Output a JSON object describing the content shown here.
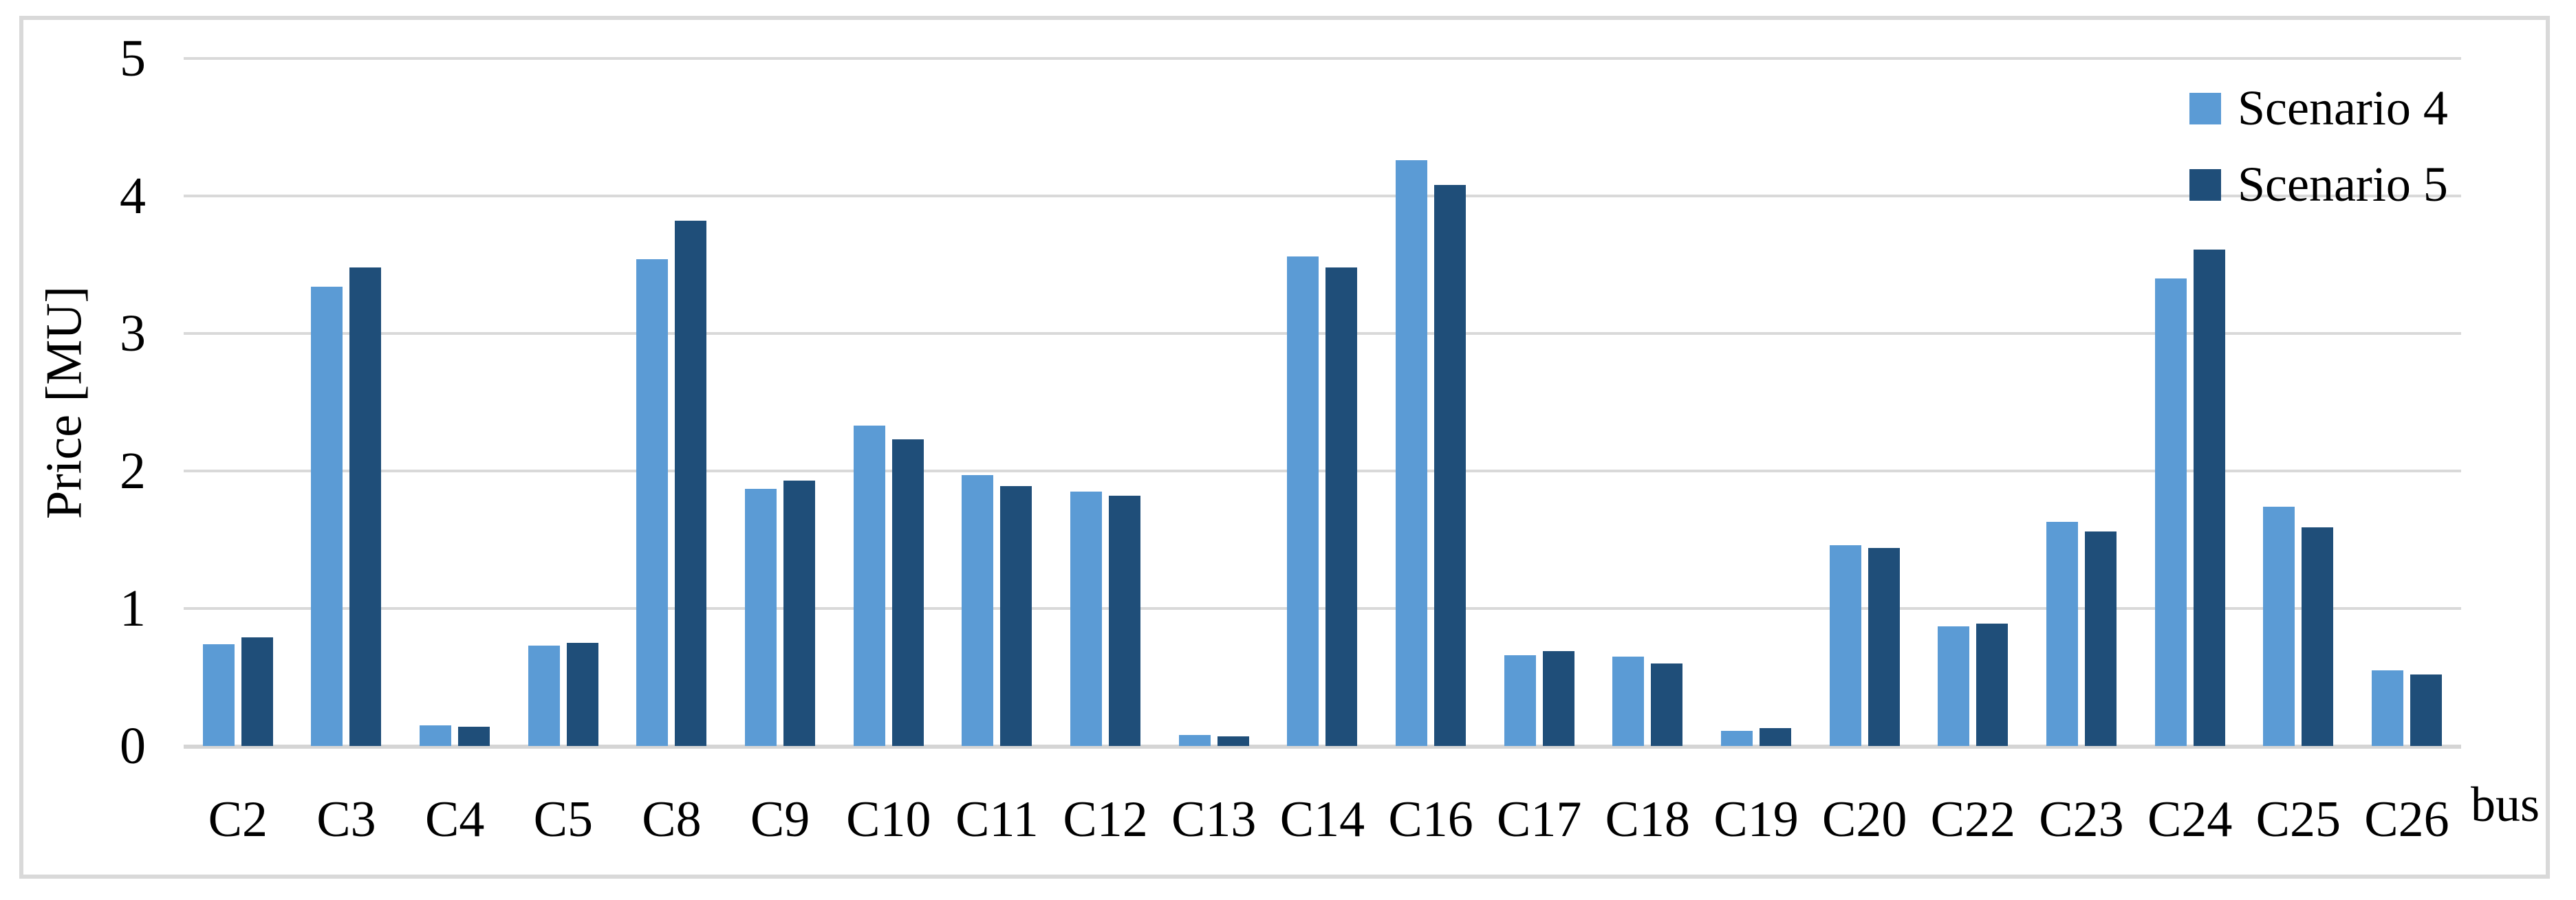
{
  "figure": {
    "background": "#ffffff",
    "border_color": "#d9d9d9",
    "gridline_color": "#d9d9d9"
  },
  "legend": {
    "items": [
      {
        "label": "Scenario 4",
        "color": "#5b9bd5"
      },
      {
        "label": "Scenario 5",
        "color": "#1f4e79"
      }
    ]
  },
  "chart_data": {
    "type": "bar",
    "title": "",
    "xlabel": "bus",
    "ylabel": "Price [MU]",
    "ylim": [
      0,
      5
    ],
    "yticks": [
      0,
      1,
      2,
      3,
      4,
      5
    ],
    "grid": true,
    "legend_position": "top-right",
    "categories": [
      "C2",
      "C3",
      "C4",
      "C5",
      "C8",
      "C9",
      "C10",
      "C11",
      "C12",
      "C13",
      "C14",
      "C16",
      "C17",
      "C18",
      "C19",
      "C20",
      "C22",
      "C23",
      "C24",
      "C25",
      "C26"
    ],
    "series": [
      {
        "name": "Scenario 4",
        "color": "#5b9bd5",
        "values": [
          0.74,
          3.34,
          0.15,
          0.73,
          3.54,
          1.87,
          2.33,
          1.97,
          1.85,
          0.08,
          3.56,
          4.26,
          0.66,
          0.65,
          0.11,
          1.46,
          0.87,
          1.63,
          3.4,
          1.74,
          0.55
        ]
      },
      {
        "name": "Scenario 5",
        "color": "#1f4e79",
        "values": [
          0.79,
          3.48,
          0.14,
          0.75,
          3.82,
          1.93,
          2.23,
          1.89,
          1.82,
          0.07,
          3.48,
          4.08,
          0.69,
          0.6,
          0.13,
          1.44,
          0.89,
          1.56,
          3.61,
          1.59,
          0.52
        ]
      }
    ]
  }
}
